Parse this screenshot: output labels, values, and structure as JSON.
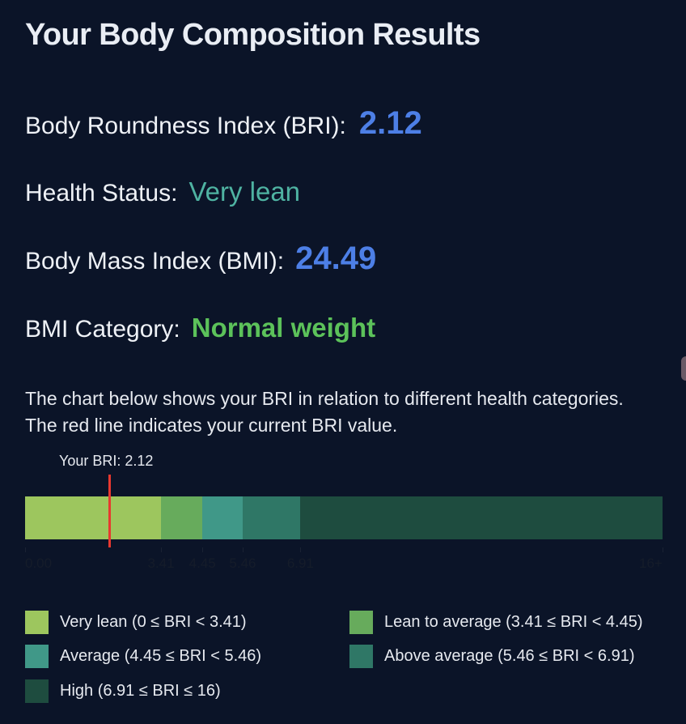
{
  "title": "Your Body Composition Results",
  "metrics": {
    "bri": {
      "label": "Body Roundness Index (BRI):",
      "value": "2.12",
      "color": "#4d7fe6"
    },
    "health": {
      "label": "Health Status:",
      "value": "Very lean",
      "color": "#4fb3a2"
    },
    "bmi": {
      "label": "Body Mass Index (BMI):",
      "value": "24.49",
      "color": "#4d7fe6"
    },
    "bmi_category": {
      "label": "BMI Category:",
      "value": "Normal weight",
      "color": "#5cc25a"
    }
  },
  "description": "The chart below shows your BRI in relation to different health categories. The red line indicates your current BRI value.",
  "chart": {
    "your_label": "Your BRI: 2.12",
    "your_value": 2.12,
    "scale_max": 16,
    "marker_color": "#e8382f",
    "segments": [
      {
        "from": 0,
        "to": 3.41,
        "color": "#9dc65e"
      },
      {
        "from": 3.41,
        "to": 4.45,
        "color": "#67ab5c"
      },
      {
        "from": 4.45,
        "to": 5.46,
        "color": "#409888"
      },
      {
        "from": 5.46,
        "to": 6.91,
        "color": "#2f7766"
      },
      {
        "from": 6.91,
        "to": 16,
        "color": "#1e4c3f"
      }
    ],
    "ticks": [
      {
        "value": 0,
        "label": "0.00"
      },
      {
        "value": 3.41,
        "label": "3.41"
      },
      {
        "value": 4.45,
        "label": "4.45"
      },
      {
        "value": 5.46,
        "label": "5.46"
      },
      {
        "value": 6.91,
        "label": "6.91"
      },
      {
        "value": 16,
        "label": "16+"
      }
    ]
  },
  "legend": [
    {
      "label": "Very lean (0 ≤ BRI < 3.41)",
      "color": "#9dc65e"
    },
    {
      "label": "Lean to average (3.41 ≤ BRI < 4.45)",
      "color": "#67ab5c"
    },
    {
      "label": "Average (4.45 ≤ BRI < 5.46)",
      "color": "#409888"
    },
    {
      "label": "Above average (5.46 ≤ BRI < 6.91)",
      "color": "#2f7766"
    },
    {
      "label": "High (6.91 ≤ BRI ≤ 16)",
      "color": "#1e4c3f"
    }
  ]
}
